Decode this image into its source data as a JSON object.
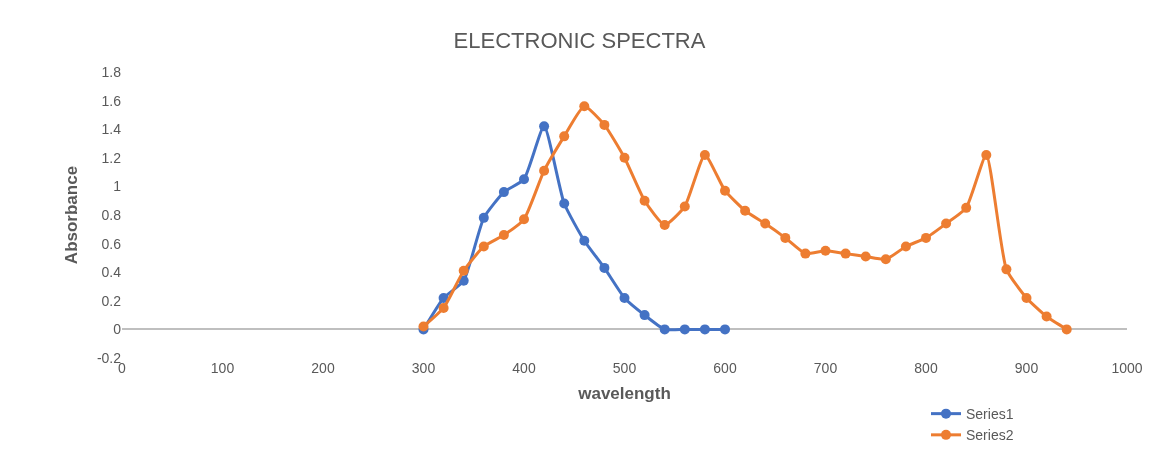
{
  "chart_data": {
    "type": "line",
    "title": "ELECTRONIC SPECTRA",
    "xlabel": "wavelength",
    "ylabel": "Absorbance",
    "xlim": [
      0,
      1000
    ],
    "xticks": [
      0,
      100,
      200,
      300,
      400,
      500,
      600,
      700,
      800,
      900,
      1000
    ],
    "ylim": [
      -0.2,
      1.8
    ],
    "yticks": [
      -0.2,
      0,
      0.2,
      0.4,
      0.6,
      0.8,
      1,
      1.2,
      1.4,
      1.6,
      1.8
    ],
    "grid": false,
    "legend": "bottom right",
    "marker": "circle",
    "line_style": "solid",
    "series": [
      {
        "name": "Series1",
        "color": "#4472c4",
        "x": [
          300,
          320,
          340,
          360,
          380,
          400,
          420,
          440,
          460,
          480,
          500,
          520,
          540,
          560,
          580,
          600
        ],
        "values": [
          0,
          0.22,
          0.34,
          0.78,
          0.96,
          1.05,
          1.42,
          0.88,
          0.62,
          0.43,
          0.22,
          0.1,
          0,
          0,
          0,
          0
        ]
      },
      {
        "name": "Series2",
        "color": "#ed7d31",
        "x": [
          300,
          320,
          340,
          360,
          380,
          400,
          420,
          440,
          460,
          480,
          500,
          520,
          540,
          560,
          580,
          600,
          620,
          640,
          660,
          680,
          700,
          720,
          740,
          760,
          780,
          800,
          820,
          840,
          860,
          880,
          900,
          920,
          940
        ],
        "values": [
          0.02,
          0.15,
          0.41,
          0.58,
          0.66,
          0.77,
          1.11,
          1.35,
          1.56,
          1.43,
          1.2,
          0.9,
          0.73,
          0.86,
          1.22,
          0.97,
          0.83,
          0.74,
          0.64,
          0.53,
          0.55,
          0.53,
          0.51,
          0.49,
          0.58,
          0.64,
          0.74,
          0.85,
          1.22,
          0.42,
          0.22,
          0.09,
          0
        ]
      }
    ]
  }
}
